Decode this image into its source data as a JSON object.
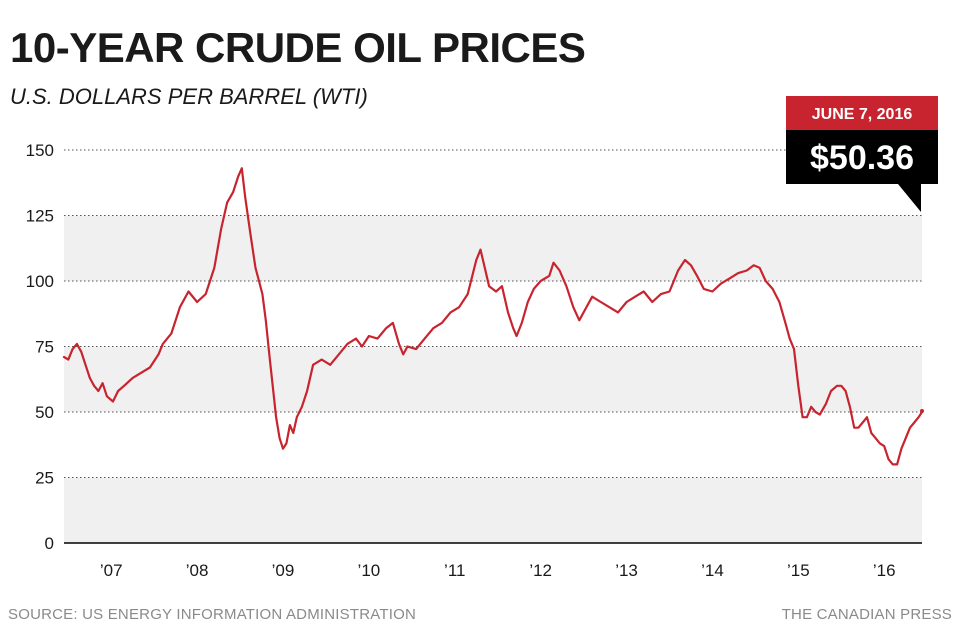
{
  "chart_data": {
    "type": "line",
    "title": "10-YEAR CRUDE OIL PRICES",
    "subtitle": "U.S. DOLLARS PER BARREL (WTI)",
    "ylim": [
      0,
      150
    ],
    "yticks": [
      0,
      25,
      50,
      75,
      100,
      125,
      150
    ],
    "xlim": [
      2006.45,
      2016.44
    ],
    "xticks": [
      {
        "label": "’07",
        "value": 2007.0
      },
      {
        "label": "’08",
        "value": 2008.0
      },
      {
        "label": "’09",
        "value": 2009.0
      },
      {
        "label": "’10",
        "value": 2010.0
      },
      {
        "label": "’11",
        "value": 2011.0
      },
      {
        "label": "’12",
        "value": 2012.0
      },
      {
        "label": "’13",
        "value": 2013.0
      },
      {
        "label": "’14",
        "value": 2014.0
      },
      {
        "label": "’15",
        "value": 2015.0
      },
      {
        "label": "’16",
        "value": 2016.0
      }
    ],
    "series": [
      {
        "color": "#c8242f",
        "x": [
          2006.45,
          2006.5,
          2006.55,
          2006.6,
          2006.65,
          2006.7,
          2006.75,
          2006.8,
          2006.85,
          2006.9,
          2006.95,
          2007.02,
          2007.08,
          2007.15,
          2007.25,
          2007.35,
          2007.45,
          2007.55,
          2007.6,
          2007.7,
          2007.8,
          2007.9,
          2008.0,
          2008.1,
          2008.2,
          2008.28,
          2008.35,
          2008.42,
          2008.48,
          2008.52,
          2008.56,
          2008.62,
          2008.68,
          2008.72,
          2008.76,
          2008.8,
          2008.84,
          2008.88,
          2008.92,
          2008.96,
          2009.0,
          2009.04,
          2009.08,
          2009.12,
          2009.16,
          2009.22,
          2009.28,
          2009.35,
          2009.45,
          2009.55,
          2009.65,
          2009.75,
          2009.85,
          2009.92,
          2010.0,
          2010.1,
          2010.2,
          2010.28,
          2010.35,
          2010.4,
          2010.45,
          2010.55,
          2010.65,
          2010.75,
          2010.85,
          2010.95,
          2011.05,
          2011.15,
          2011.25,
          2011.3,
          2011.35,
          2011.4,
          2011.48,
          2011.55,
          2011.62,
          2011.68,
          2011.72,
          2011.78,
          2011.85,
          2011.92,
          2012.0,
          2012.1,
          2012.15,
          2012.22,
          2012.3,
          2012.38,
          2012.45,
          2012.5,
          2012.6,
          2012.7,
          2012.8,
          2012.9,
          2013.0,
          2013.1,
          2013.2,
          2013.3,
          2013.4,
          2013.5,
          2013.6,
          2013.68,
          2013.75,
          2013.82,
          2013.9,
          2014.0,
          2014.1,
          2014.2,
          2014.3,
          2014.4,
          2014.48,
          2014.55,
          2014.62,
          2014.7,
          2014.78,
          2014.85,
          2014.9,
          2014.95,
          2015.0,
          2015.05,
          2015.1,
          2015.15,
          2015.2,
          2015.25,
          2015.32,
          2015.38,
          2015.45,
          2015.5,
          2015.55,
          2015.6,
          2015.65,
          2015.7,
          2015.75,
          2015.8,
          2015.85,
          2015.9,
          2015.95,
          2016.0,
          2016.05,
          2016.1,
          2016.15,
          2016.2,
          2016.25,
          2016.3,
          2016.35,
          2016.4,
          2016.44
        ],
        "y": [
          71,
          70,
          74,
          76,
          73,
          68,
          63,
          60,
          58,
          61,
          56,
          54,
          58,
          60,
          63,
          65,
          67,
          72,
          76,
          80,
          90,
          96,
          92,
          95,
          105,
          120,
          130,
          134,
          140,
          143,
          132,
          118,
          105,
          100,
          95,
          85,
          72,
          60,
          48,
          40,
          36,
          38,
          45,
          42,
          48,
          52,
          58,
          68,
          70,
          68,
          72,
          76,
          78,
          75,
          79,
          78,
          82,
          84,
          76,
          72,
          75,
          74,
          78,
          82,
          84,
          88,
          90,
          95,
          108,
          112,
          105,
          98,
          96,
          98,
          88,
          82,
          79,
          84,
          92,
          97,
          100,
          102,
          107,
          104,
          98,
          90,
          85,
          88,
          94,
          92,
          90,
          88,
          92,
          94,
          96,
          92,
          95,
          96,
          104,
          108,
          106,
          102,
          97,
          96,
          99,
          101,
          103,
          104,
          106,
          105,
          100,
          97,
          92,
          84,
          78,
          74,
          60,
          48,
          48,
          52,
          50,
          49,
          53,
          58,
          60,
          60,
          58,
          52,
          44,
          44,
          46,
          48,
          42,
          40,
          38,
          37,
          32,
          30,
          30,
          36,
          40,
          44,
          46,
          48,
          50
        ],
        "last": {
          "x": 2016.44,
          "y": 50.36
        }
      }
    ],
    "callout": {
      "date": "JUNE 7, 2016",
      "value": "$50.36"
    },
    "grid": "dotted horizontal",
    "background_bands": true
  },
  "footer": {
    "source": "SOURCE: US ENERGY INFORMATION ADMINISTRATION",
    "credit": "THE CANADIAN PRESS"
  },
  "colors": {
    "line": "#c8242f",
    "callout_date_bg": "#c8242f",
    "callout_value_bg": "#000000",
    "band": "#f0f0f0",
    "text": "#1a1a1a",
    "footer_text": "#8a8a8a"
  }
}
